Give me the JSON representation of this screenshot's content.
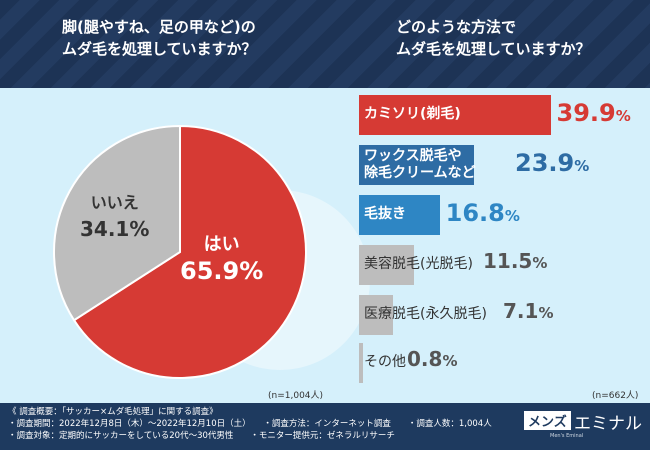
{
  "header": {
    "q1": [
      "脚(腿やすね、足の甲など)の",
      "ムダ毛を処理していますか？"
    ],
    "q2": [
      "どのような方法で",
      "ムダ毛を処理していますか？"
    ]
  },
  "chart_data": [
    {
      "type": "pie",
      "title": "脚(腿やすね、足の甲など)のムダ毛を処理していますか？",
      "categories": [
        "はい",
        "いいえ"
      ],
      "values": [
        65.9,
        34.1
      ],
      "labels": [
        "65.9%",
        "34.1%"
      ],
      "colors": [
        "#d63a34",
        "#bdbdbd"
      ],
      "note": "(n=1,004人)"
    },
    {
      "type": "bar",
      "title": "どのような方法でムダ毛を処理していますか？",
      "categories": [
        "カミソリ(剃毛)",
        "ワックス脱毛や除毛クリームなど",
        "毛抜き",
        "美容脱毛(光脱毛)",
        "医療脱毛(永久脱毛)",
        "その他"
      ],
      "values": [
        39.9,
        23.9,
        16.8,
        11.5,
        7.1,
        0.8
      ],
      "colors": [
        "#d63a34",
        "#2e6ca4",
        "#2e86c4",
        "#bdbdbd",
        "#bdbdbd",
        "#bdbdbd"
      ],
      "note": "(n=662人)"
    }
  ],
  "pie_labels": {
    "yes": "はい",
    "yes_val": "65.9%",
    "no": "いいえ",
    "no_val": "34.1%"
  },
  "bar_labels": [
    "カミソリ(剃毛)",
    "ワックス脱毛や\n除毛クリームなど",
    "毛抜き",
    "美容脱毛(光脱毛)",
    "医療脱毛(永久脱毛)",
    "その他"
  ],
  "bar_values": [
    "39.9",
    "23.9",
    "16.8",
    "11.5",
    "7.1",
    "0.8"
  ],
  "footer": {
    "lines": [
      "《 調査概要：「サッカー×ムダ毛処理」に関する調査》",
      "・調査期間：2022年12月8日（木）～2022年12月10日（土）　　・調査方法：インターネット調査　　・調査人数：1,004人",
      "・調査対象：定期的にサッカーをしている20代～30代男性　　・モニター提供元：ゼネラルリサーチ"
    ]
  },
  "logo": {
    "mens": "メンズ",
    "brand": "エミナル",
    "sub": "Men's Eminal"
  }
}
